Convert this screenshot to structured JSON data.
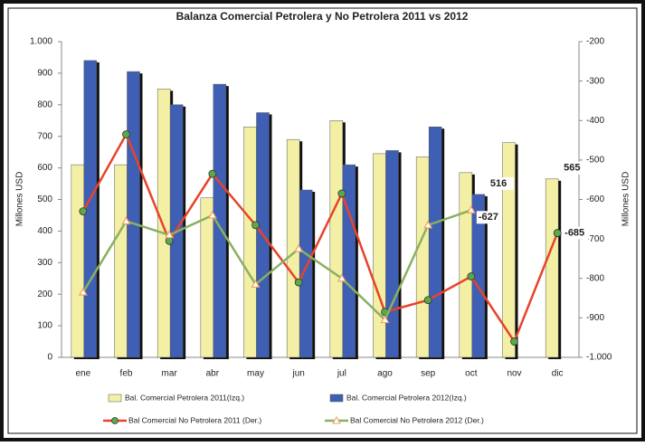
{
  "chart_data": {
    "type": "bar-line",
    "title": "Balanza Comercial Petrolera y No Petrolera 2011 vs 2012",
    "categories": [
      "ene",
      "feb",
      "mar",
      "abr",
      "may",
      "jun",
      "jul",
      "ago",
      "sep",
      "oct",
      "nov",
      "dic"
    ],
    "y_label": "Millones USD",
    "y2_label": "Millones USD",
    "ylim": [
      0,
      1000
    ],
    "yticks": [
      0,
      100,
      200,
      300,
      400,
      500,
      600,
      700,
      800,
      900,
      {
        "value": 1000,
        "label": "1.000"
      }
    ],
    "y2lim": [
      -1000,
      -200
    ],
    "y2ticks": [
      {
        "value": -1000,
        "label": "-1.000"
      },
      -900,
      -800,
      -700,
      -600,
      -500,
      -400,
      -300,
      -200
    ],
    "grid": false,
    "series": [
      {
        "name": "Bal. Comercial Petrolera 2011(Izq.)",
        "type": "bar",
        "color": "#f3f0a6",
        "values": [
          610,
          610,
          850,
          505,
          730,
          690,
          750,
          645,
          635,
          585,
          680,
          565
        ],
        "value_labels": [
          null,
          null,
          null,
          null,
          null,
          null,
          null,
          null,
          null,
          null,
          null,
          "565"
        ],
        "label_color": "#000000"
      },
      {
        "name": "Bal. Comercial Petrolera 2012(Izq.)",
        "type": "bar",
        "color": "#3f5fb5",
        "values": [
          940,
          905,
          800,
          865,
          775,
          530,
          610,
          655,
          730,
          516,
          null,
          null
        ],
        "value_labels": [
          null,
          null,
          null,
          null,
          null,
          null,
          null,
          null,
          null,
          "516",
          null,
          null
        ],
        "label_color": "#3a78c8"
      },
      {
        "name": "Bal Comercial No Petrolera 2011 (Der.)",
        "type": "line",
        "axis": "y2",
        "color": "#e8432a",
        "marker": "circle",
        "marker_color": "#5aa84a",
        "values": [
          -630,
          -435,
          -705,
          -535,
          -665,
          -810,
          -585,
          -885,
          -855,
          -795,
          -960,
          -685
        ],
        "value_labels": [
          null,
          null,
          null,
          null,
          null,
          null,
          null,
          null,
          null,
          null,
          null,
          "-685"
        ],
        "label_color": "#3e9a3a"
      },
      {
        "name": "Bal Comercial No Petrolera 2012 (Der.)",
        "type": "line",
        "axis": "y2",
        "color": "#8ab060",
        "marker": "triangle",
        "marker_color": "#f0a060",
        "values": [
          -835,
          -655,
          -690,
          -640,
          -815,
          -725,
          -800,
          -905,
          -665,
          -627,
          null,
          null
        ],
        "value_labels": [
          null,
          null,
          null,
          null,
          null,
          null,
          null,
          null,
          null,
          "-627",
          null,
          null
        ],
        "label_color": "#e8432a"
      }
    ]
  }
}
